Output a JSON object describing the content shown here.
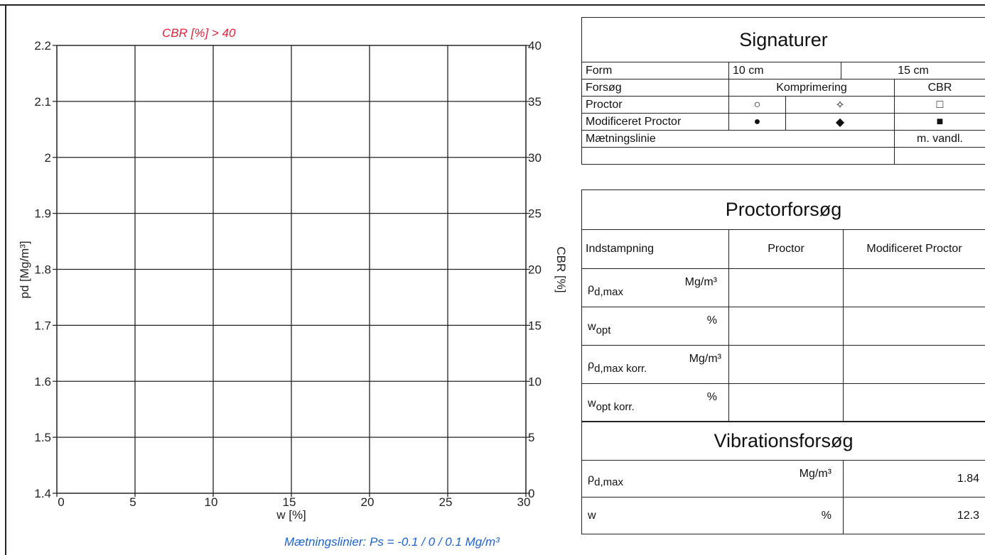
{
  "chart_data": {
    "type": "line",
    "annotation_top": "CBR [%] > 40",
    "annotation_bottom": "Mætningslinier: Ps = -0.1 / 0 / 0.1 Mg/m³",
    "xlabel": "w [%]",
    "ylabel_left": "pd [Mg/m³]",
    "ylabel_right": "CBR [%]",
    "xlim": [
      0,
      30
    ],
    "ylim_left": [
      1.4,
      2.2
    ],
    "ylim_right": [
      0,
      40
    ],
    "x_ticks": [
      "0",
      "5",
      "10",
      "15",
      "20",
      "25",
      "30"
    ],
    "y_left_ticks": [
      "2.2",
      "2.1",
      "2",
      "1.9",
      "1.8",
      "1.7",
      "1.6",
      "1.5",
      "1.4"
    ],
    "y_right_ticks": [
      "40",
      "35",
      "30",
      "25",
      "20",
      "15",
      "10",
      "5",
      "0"
    ],
    "grid": true,
    "series": [],
    "annotation_color": "#e0213a",
    "note_color": "#1f63c9"
  },
  "signaturer": {
    "title": "Signaturer",
    "form_label": "Form",
    "form_10": "10 cm",
    "form_15": "15 cm",
    "forsog_label": "Forsøg",
    "komprimering": "Komprimering",
    "cbr": "CBR",
    "proctor_label": "Proctor",
    "proctor_sym1": "○",
    "proctor_sym2": "✧",
    "proctor_sym3": "□",
    "modproctor_label": "Modificeret Proctor",
    "modproctor_sym1": "●",
    "modproctor_sym2": "◆",
    "modproctor_sym3": "■",
    "maetningslinie_label": "Mætningslinie",
    "m_vandl": "m. vandl."
  },
  "proctorforsog": {
    "title": "Proctorforsøg",
    "indstampning": "Indstampning",
    "col_proctor": "Proctor",
    "col_modproctor": "Modificeret Proctor",
    "rows": [
      {
        "sym": "ρ",
        "sub": "d,max",
        "unit": "Mg/m³"
      },
      {
        "sym": "w",
        "sub": "opt",
        "unit": "%"
      },
      {
        "sym": "ρ",
        "sub": "d,max korr.",
        "unit": "Mg/m³"
      },
      {
        "sym": "w",
        "sub": "opt korr.",
        "unit": "%"
      }
    ]
  },
  "vibrationsforsog": {
    "title": "Vibrationsforsøg",
    "row1": {
      "sym": "ρ",
      "sub": "d,max",
      "unit": "Mg/m³",
      "value": "1.84"
    },
    "row2": {
      "sym": "w",
      "unit": "%",
      "value": "12.3"
    }
  }
}
